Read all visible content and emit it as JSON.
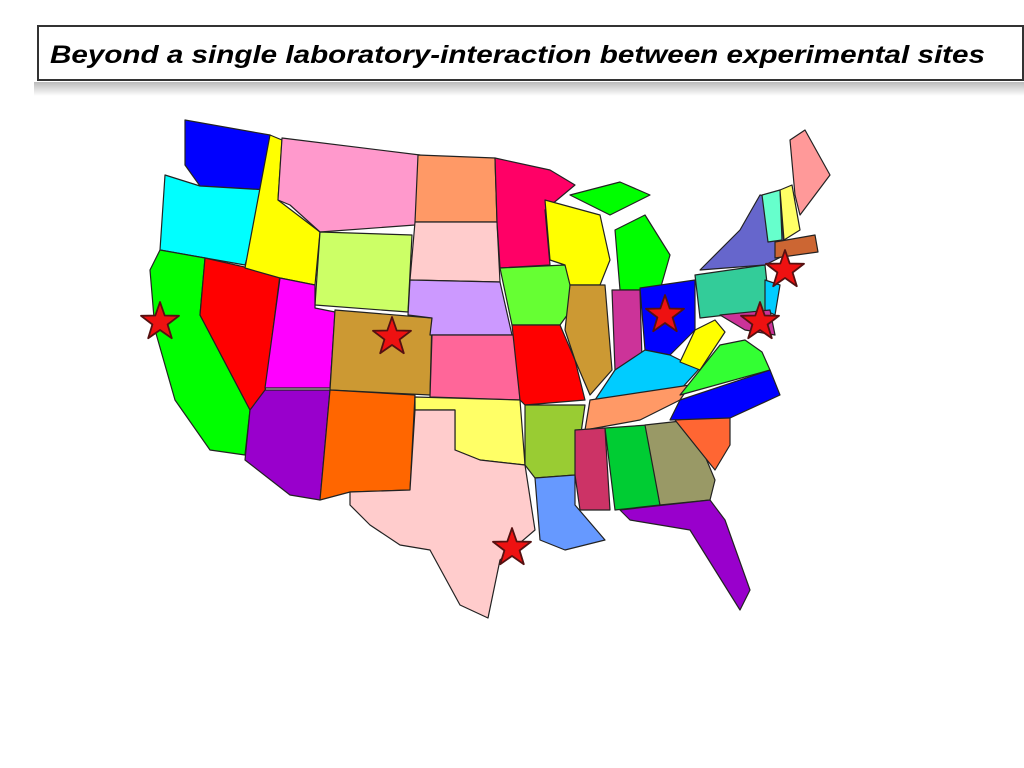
{
  "title": "Beyond a single laboratory-interaction between experimental sites"
}
